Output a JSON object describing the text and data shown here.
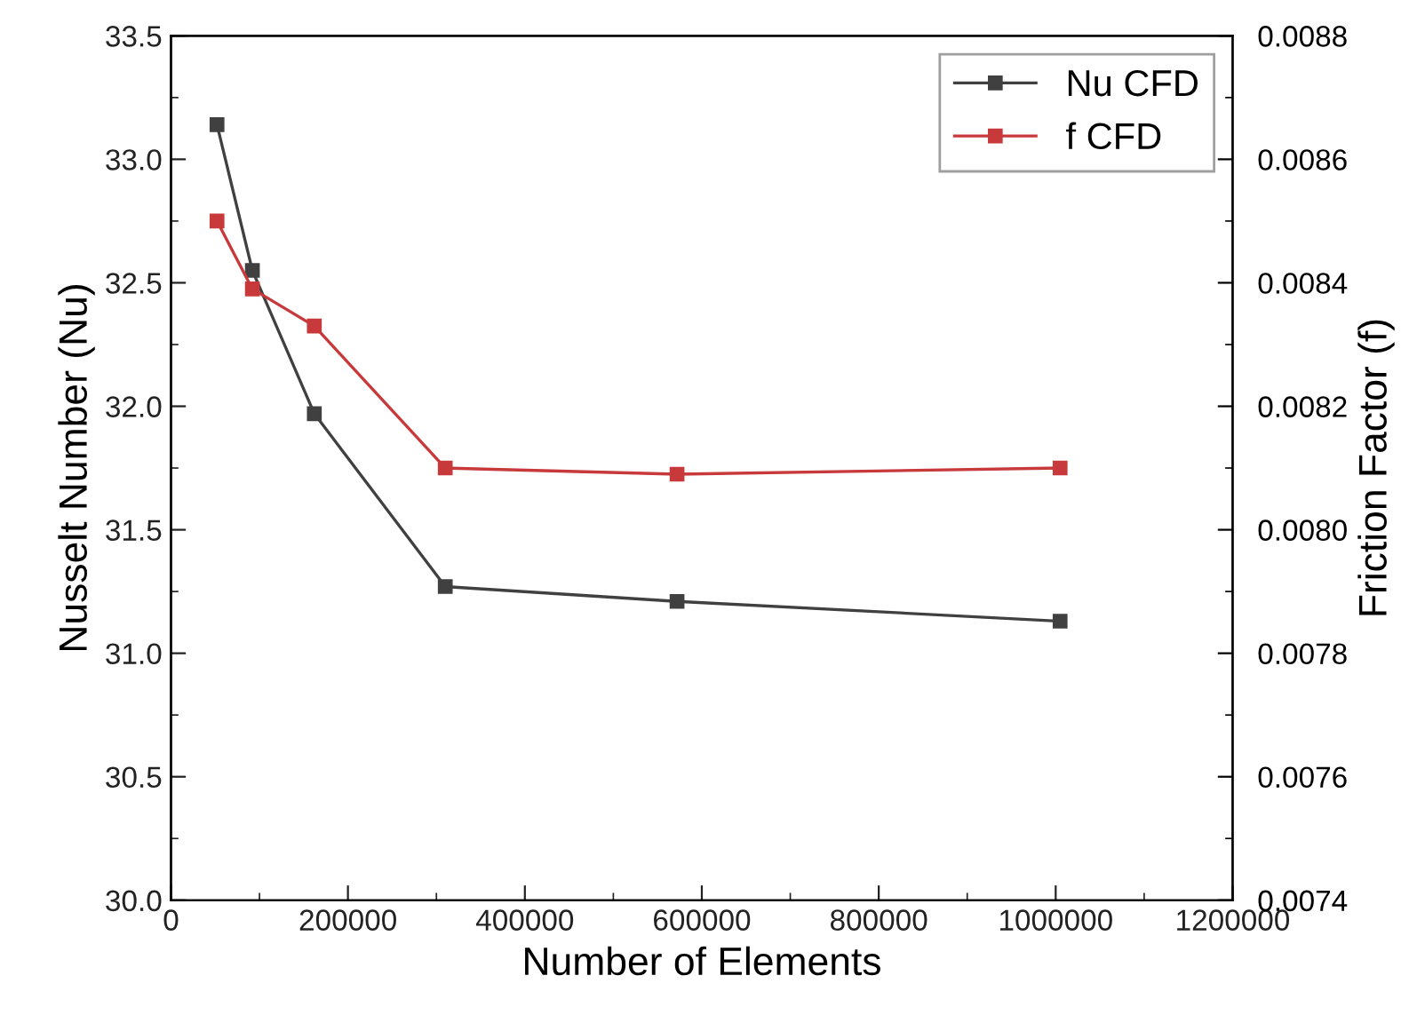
{
  "chart_data": {
    "type": "line",
    "xlabel": "Number of Elements",
    "ylabel": "Nusselt Number (Nu)",
    "y2label": "Friction Factor (f)",
    "x": [
      52000,
      92000,
      162000,
      310000,
      572000,
      1005000
    ],
    "series": [
      {
        "name": "Nu CFD",
        "color": "#404040",
        "values": [
          33.14,
          32.55,
          31.97,
          31.27,
          31.21,
          31.13
        ]
      },
      {
        "name": "f CFD",
        "color": "#c8393b",
        "axis": "y2",
        "values": [
          0.0085,
          0.00839,
          0.00833,
          0.0081,
          0.00809,
          0.0081
        ]
      }
    ],
    "xlim": [
      0,
      1200000
    ],
    "xticks": [
      0,
      200000,
      400000,
      600000,
      800000,
      1000000,
      1200000
    ],
    "ylim": [
      30.0,
      33.5
    ],
    "yticks": [
      {
        "value": 30.0,
        "label": "30.0"
      },
      {
        "value": 30.5,
        "label": "30.5"
      },
      {
        "value": 31.0,
        "label": "31.0"
      },
      {
        "value": 31.5,
        "label": "31.5"
      },
      {
        "value": 32.0,
        "label": "32.0"
      },
      {
        "value": 32.5,
        "label": "32.5"
      },
      {
        "value": 33.0,
        "label": "33.0"
      },
      {
        "value": 33.5,
        "label": "33.5"
      }
    ],
    "y2lim": [
      0.0074,
      0.0088
    ],
    "y2ticks": [
      {
        "value": 0.0074,
        "label": "0.0074"
      },
      {
        "value": 0.0076,
        "label": "0.0076"
      },
      {
        "value": 0.0078,
        "label": "0.0078"
      },
      {
        "value": 0.008,
        "label": "0.0080"
      },
      {
        "value": 0.0082,
        "label": "0.0082"
      },
      {
        "value": 0.0084,
        "label": "0.0084"
      },
      {
        "value": 0.0086,
        "label": "0.0086"
      },
      {
        "value": 0.0088,
        "label": "0.0088"
      }
    ],
    "marker": "square",
    "line_style": "solid",
    "legend": "top right",
    "grid": false
  }
}
